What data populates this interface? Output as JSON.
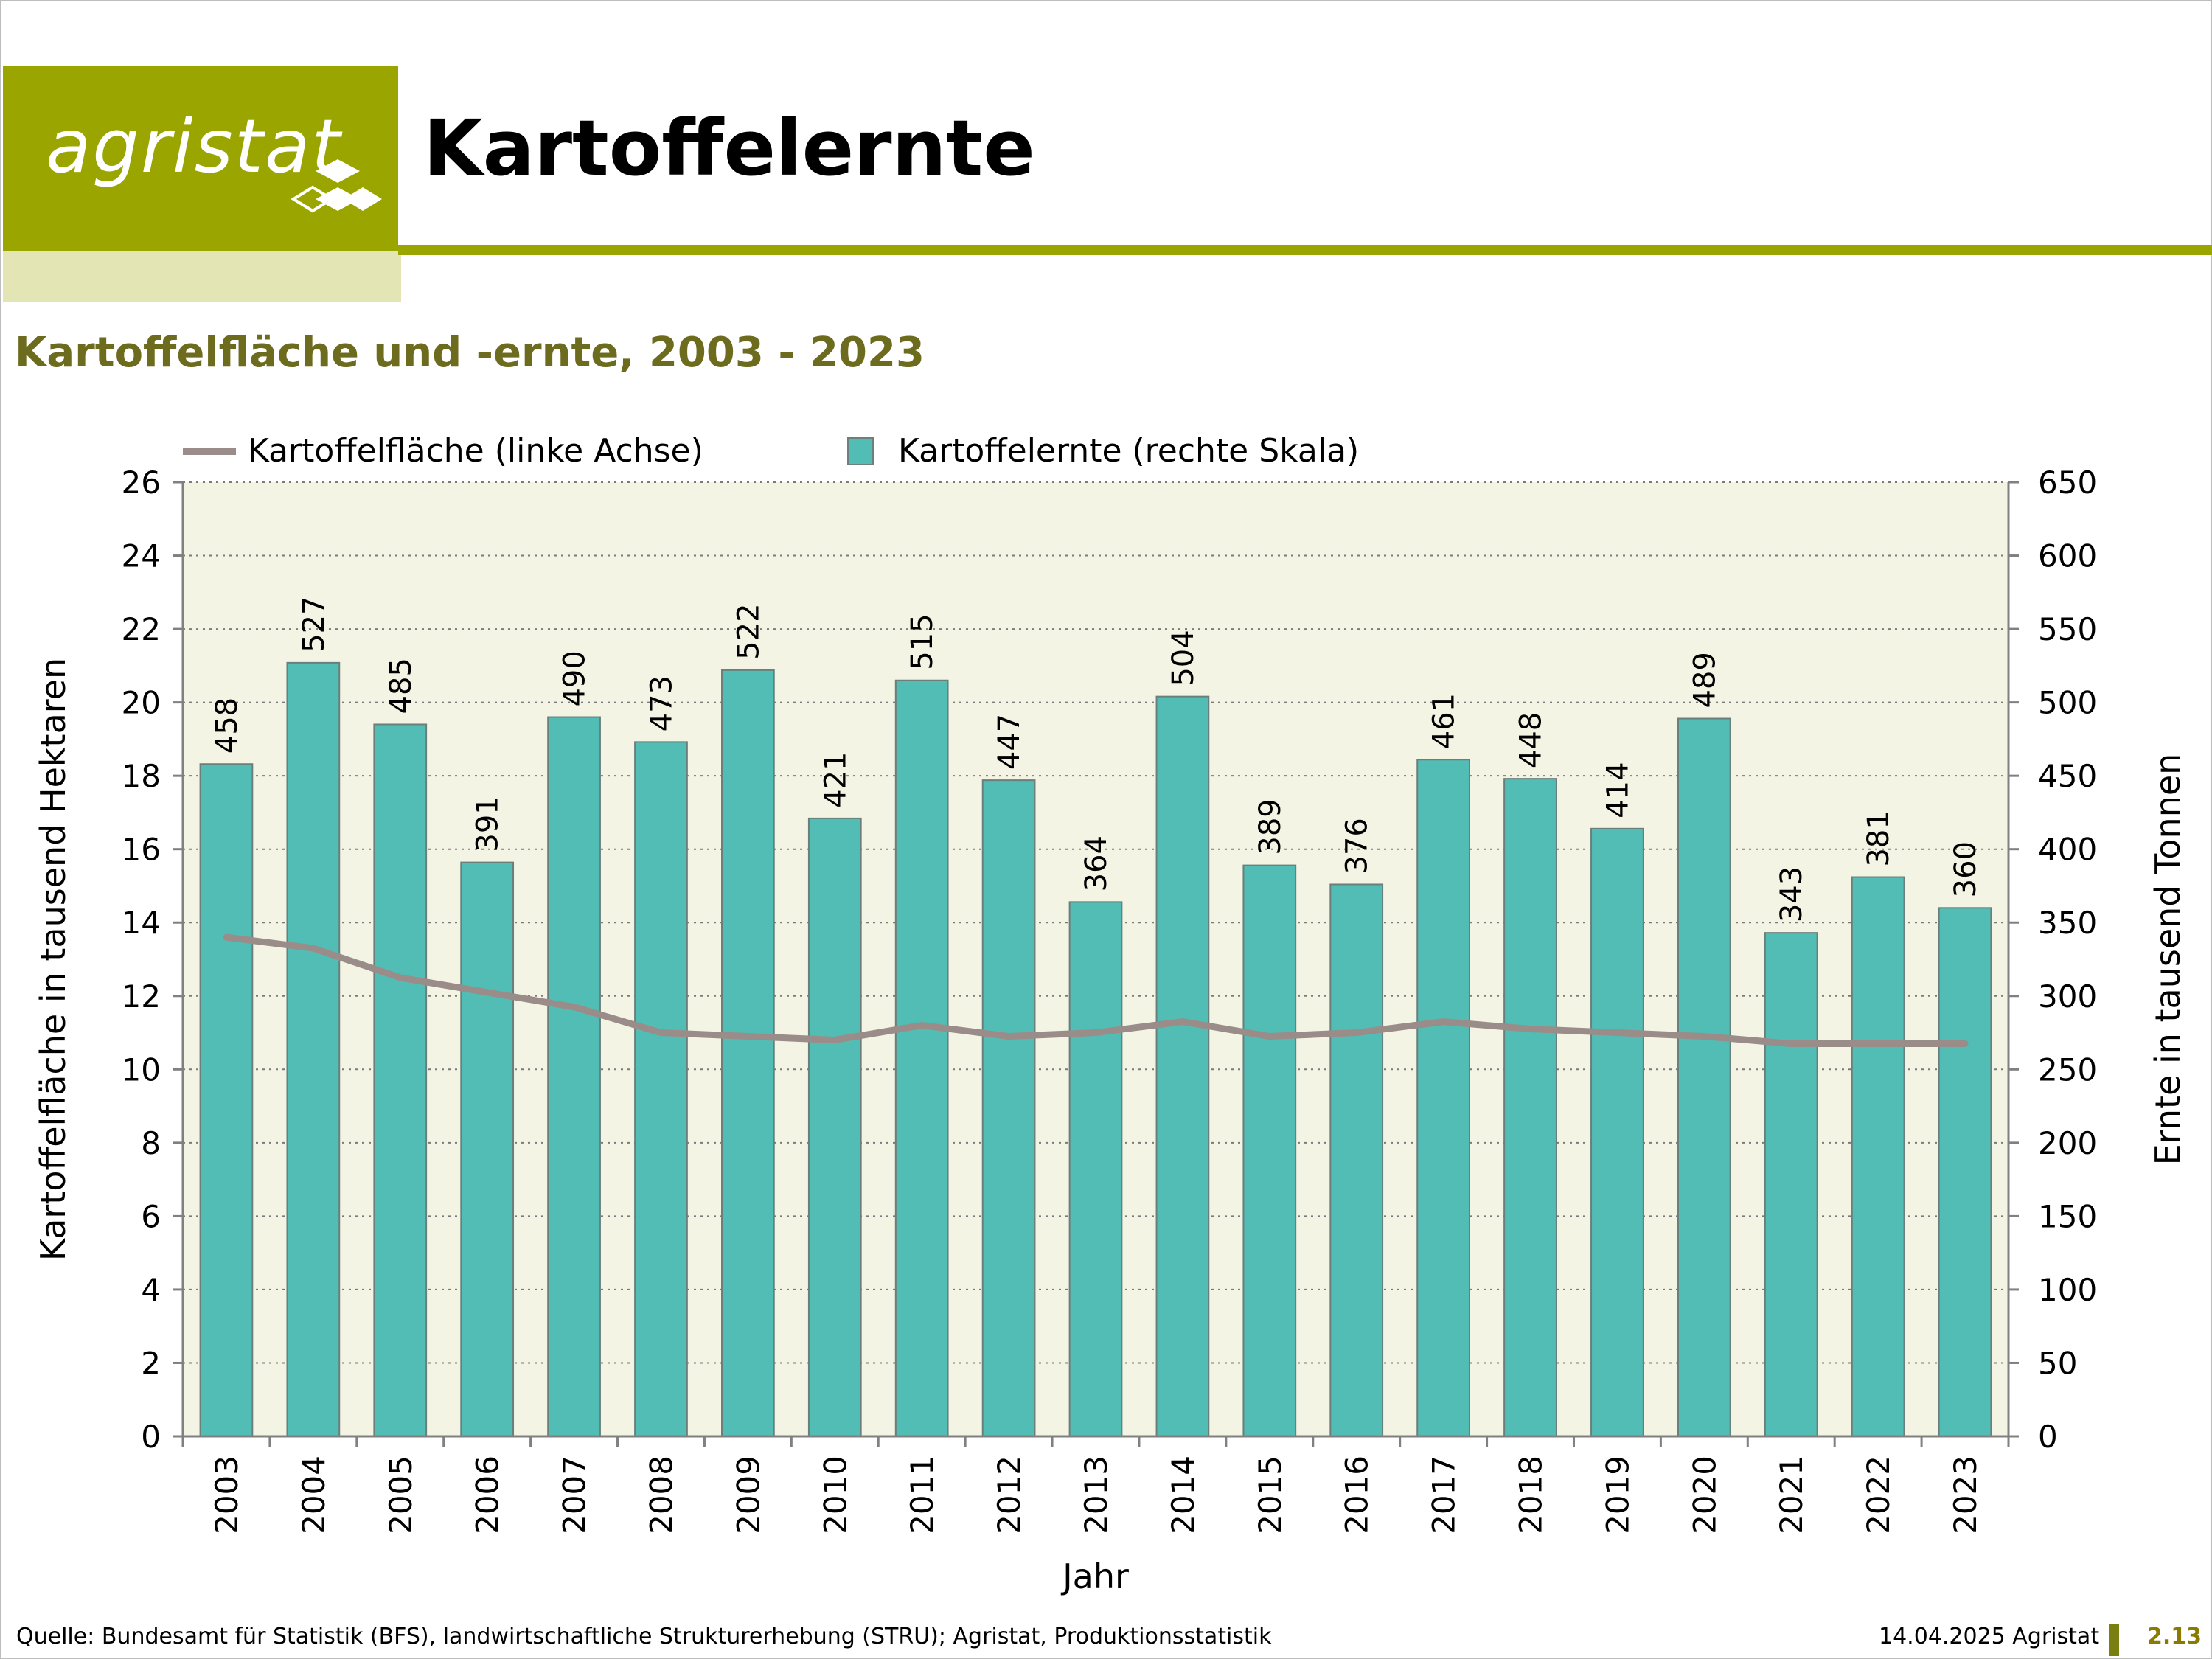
{
  "header": {
    "logo_text": "agristat",
    "title": "Kartoffelernte"
  },
  "subtitle": "Kartoffelfläche und -ernte, 2003 - 2023",
  "colors": {
    "brand_green": "#9aa500",
    "bar_fill": "#52bdb5",
    "line": "#9a8c88",
    "plot_bg": "#f4f4e4",
    "subtitle": "#6d6b1e"
  },
  "chart_data": {
    "type": "bar",
    "categories": [
      "2003",
      "2004",
      "2005",
      "2006",
      "2007",
      "2008",
      "2009",
      "2010",
      "2011",
      "2012",
      "2013",
      "2014",
      "2015",
      "2016",
      "2017",
      "2018",
      "2019",
      "2020",
      "2021",
      "2022",
      "2023"
    ],
    "series": [
      {
        "name": "Kartoffelernte (rechte Skala)",
        "type": "bar",
        "axis": "right",
        "values": [
          458,
          527,
          485,
          391,
          490,
          473,
          522,
          421,
          515,
          447,
          364,
          504,
          389,
          376,
          461,
          448,
          414,
          489,
          343,
          381,
          360
        ]
      },
      {
        "name": "Kartoffelfläche (linke Achse)",
        "type": "line",
        "axis": "left",
        "values": [
          13.6,
          13.3,
          12.5,
          12.1,
          11.7,
          11.0,
          10.9,
          10.8,
          11.2,
          10.9,
          11.0,
          11.3,
          10.9,
          11.0,
          11.3,
          11.1,
          11.0,
          10.9,
          10.7,
          10.7,
          10.7
        ]
      }
    ],
    "xlabel": "Jahr",
    "ylabel_left": "Kartoffelfläche in tausend Hektaren",
    "ylabel_right": "Ernte in tausend Tonnen",
    "ylim_left": [
      0,
      26
    ],
    "ylim_right": [
      0,
      650
    ],
    "yticks_left": [
      "0",
      "2",
      "4",
      "6",
      "8",
      "10",
      "12",
      "14",
      "16",
      "18",
      "20",
      "22",
      "24",
      "26"
    ],
    "yticks_right": [
      "0",
      "50",
      "100",
      "150",
      "200",
      "250",
      "300",
      "350",
      "400",
      "450",
      "500",
      "550",
      "600",
      "650"
    ],
    "grid": true,
    "legend_position": "top-left"
  },
  "footer": {
    "source": "Quelle: Bundesamt für Statistik (BFS), landwirtschaftliche Strukturerhebung (STRU); Agristat, Produktionsstatistik",
    "date": "14.04.2025 Agristat",
    "page": "2.13"
  }
}
